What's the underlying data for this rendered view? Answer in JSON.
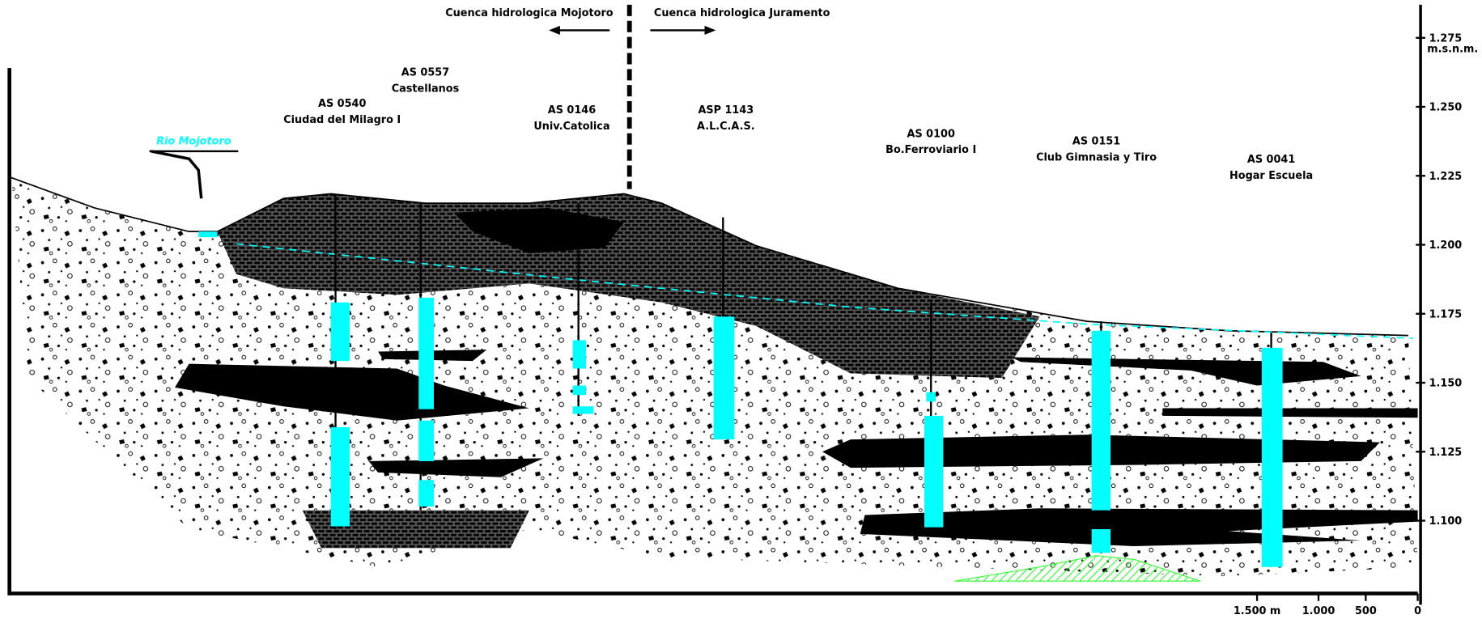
{
  "header": {
    "left_basin": "Cuenca hidrologica Mojotoro",
    "right_basin": "Cuenca hidrologica Juramento"
  },
  "river": "Rio Mojotoro",
  "wells": [
    {
      "id": "AS 0540",
      "name": "Ciudad del Milagro I"
    },
    {
      "id": "AS 0557",
      "name": "Castellanos"
    },
    {
      "id": "AS 0146",
      "name": "Univ.Catolica"
    },
    {
      "id": "ASP 1143",
      "name": "A.L.C.A.S."
    },
    {
      "id": "AS 0100",
      "name": "Bo.Ferroviario I"
    },
    {
      "id": "AS 0151",
      "name": "Club Gimnasia y Tiro"
    },
    {
      "id": "AS 0041",
      "name": "Hogar Escuela"
    }
  ],
  "elevation_axis": {
    "unit": "m.s.n.m.",
    "labels": [
      "1.275",
      "1.250",
      "1.225",
      "1.200",
      "1.175",
      "1.150",
      "1.125",
      "1.100"
    ]
  },
  "distance_scale": {
    "labels": [
      "1.500 m",
      "1.000",
      "500",
      "0"
    ]
  }
}
